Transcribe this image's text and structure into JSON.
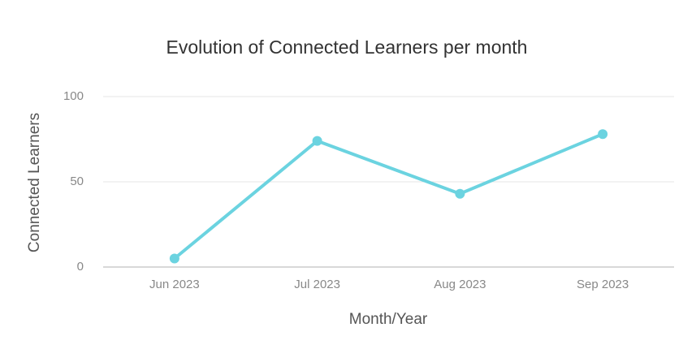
{
  "chart_data": {
    "type": "line",
    "title": "Evolution of Connected Learners per month",
    "x_label": "Month/Year",
    "y_label": "Connected Learners",
    "categories": [
      "Jun 2023",
      "Jul 2023",
      "Aug 2023",
      "Sep 2023"
    ],
    "series": [
      {
        "name": "Connected Learners",
        "color": "#6bd3e0",
        "values": [
          5,
          74,
          43,
          78
        ]
      }
    ],
    "ylim": [
      0,
      100
    ],
    "yticks": [
      0,
      50,
      100
    ],
    "grid": true
  }
}
